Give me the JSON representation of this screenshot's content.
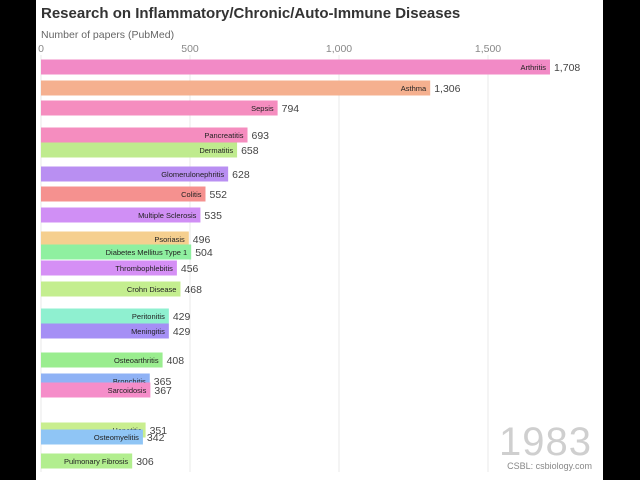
{
  "chart_data": {
    "type": "bar",
    "title": "Research on Inflammatory/Chronic/Auto-Immune Diseases",
    "xlabel": "Number of papers (PubMed)",
    "ylabel": "",
    "xlim": [
      0,
      1700
    ],
    "x_ticks": [
      0,
      500,
      1000,
      1500
    ],
    "x_tick_labels": [
      "0",
      "500",
      "1,000",
      "1,500"
    ],
    "grid": true,
    "year": "1983",
    "credit": "CSBL: csbiology.com",
    "categories": [
      "Arthritis",
      "Asthma",
      "Sepsis",
      "Pancreatitis",
      "Dermatitis",
      "Glomerulonephritis",
      "Colitis",
      "Multiple Sclerosis",
      "Psoriasis",
      "Diabetes Mellitus Type 1",
      "Thrombophlebitis",
      "Crohn Disease",
      "Peritonitis",
      "Meningitis",
      "Osteoarthritis",
      "Bronchitis",
      "Sarcoidosis",
      "Hepatitis",
      "Osteomyelitis",
      "Pulmonary Fibrosis"
    ],
    "values": [
      1708,
      1306,
      794,
      693,
      658,
      628,
      552,
      535,
      496,
      504,
      456,
      468,
      429,
      429,
      408,
      365,
      367,
      351,
      342,
      306
    ],
    "value_labels": [
      "1,708",
      "1,306",
      "794",
      "693",
      "658",
      "628",
      "552",
      "535",
      "496",
      "504",
      "456",
      "468",
      "429",
      "429",
      "408",
      "365",
      "367",
      "351",
      "342",
      "306"
    ],
    "colors": [
      "#f28ac6",
      "#f5b08f",
      "#f58dbf",
      "#f58dbf",
      "#bfeb8e",
      "#b98ff2",
      "#f5918f",
      "#d08ff5",
      "#f5cf8f",
      "#8ff0a0",
      "#d58ff5",
      "#c4ee8f",
      "#8ff0d0",
      "#a58ff5",
      "#9aed8f",
      "#8fb2f5",
      "#f58dc9",
      "#c9ee8f",
      "#8fc5f5",
      "#b2ee8f"
    ]
  }
}
